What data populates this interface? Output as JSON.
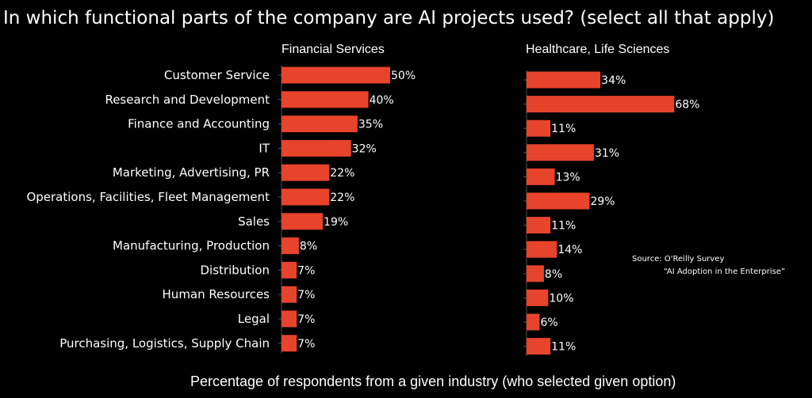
{
  "colors": {
    "background": "#000000",
    "bar": "#e8432b",
    "text": "#ffffff",
    "axis": "#555555"
  },
  "chart_data": {
    "type": "bar",
    "orientation": "horizontal",
    "title": "In which functional parts of the company are AI projects used?  (select all that apply)",
    "xlabel": "Percentage of respondents from a given industry (who selected given option)",
    "categories": [
      "Customer Service",
      "Research and Development",
      "Finance and Accounting",
      "IT",
      "Marketing, Advertising, PR",
      "Operations, Facilities, Fleet Management",
      "Sales",
      "Manufacturing, Production",
      "Distribution",
      "Human Resources",
      "Legal",
      "Purchasing, Logistics, Supply Chain"
    ],
    "series": [
      {
        "name": "Financial Services",
        "values": [
          50,
          40,
          35,
          32,
          22,
          22,
          19,
          8,
          7,
          7,
          7,
          7
        ],
        "labels": [
          "50%",
          "40%",
          "35%",
          "32%",
          "22%",
          "22%",
          "19%",
          "8%",
          "7%",
          "7%",
          "7%",
          "7%"
        ]
      },
      {
        "name": "Healthcare, Life Sciences",
        "values": [
          34,
          68,
          11,
          31,
          13,
          29,
          11,
          14,
          8,
          10,
          6,
          11
        ],
        "labels": [
          "34%",
          "68%",
          "11%",
          "31%",
          "13%",
          "29%",
          "11%",
          "14%",
          "8%",
          "10%",
          "6%",
          "11%"
        ]
      }
    ],
    "source": {
      "line1": "Source:   O'Reilly Survey",
      "line2": "“AI Adoption in the Enterprise”"
    }
  }
}
